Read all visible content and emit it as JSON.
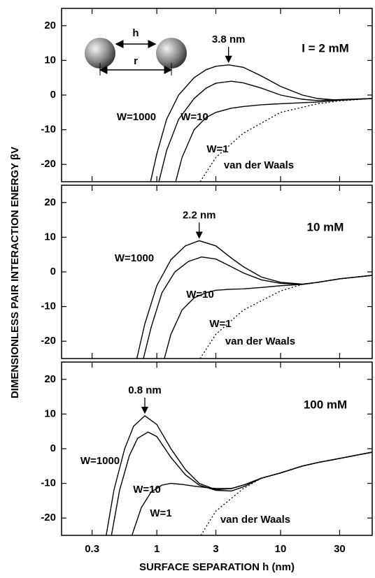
{
  "chart_data": [
    {
      "type": "line",
      "title": "I = 2 mM",
      "xscale": "log",
      "xlim": [
        0.17,
        55
      ],
      "ylim": [
        -25,
        25
      ],
      "xticks": [
        0.3,
        1,
        3,
        10,
        30
      ],
      "yticks": [
        20,
        10,
        0,
        -10,
        -20
      ],
      "color": "#000000",
      "inset_labels": [
        "h",
        "r"
      ],
      "annotation": {
        "text": "3.8 nm",
        "x": 3.8,
        "y": 8.7
      },
      "series": [
        {
          "name": "W=1000",
          "style": "solid",
          "x": [
            0.89,
            1,
            1.2,
            1.5,
            2,
            2.5,
            3,
            3.8,
            5,
            7,
            10,
            15,
            20,
            30,
            40,
            55
          ],
          "values": [
            -25,
            -17,
            -7,
            0,
            5,
            7.3,
            8.3,
            8.7,
            8,
            5.5,
            2.5,
            0,
            -1,
            -1.5,
            -1.2,
            -1
          ]
        },
        {
          "name": "W=10",
          "style": "solid",
          "x": [
            1.04,
            1.2,
            1.5,
            2,
            2.5,
            3,
            4,
            5,
            7,
            10,
            15,
            20,
            30,
            55
          ],
          "values": [
            -25,
            -16,
            -7,
            -1,
            2,
            3.4,
            4,
            3.5,
            2,
            0,
            -1.2,
            -1.6,
            -1.3,
            -1
          ]
        },
        {
          "name": "W=1",
          "style": "solid",
          "x": [
            1.42,
            1.6,
            2,
            2.5,
            3,
            4,
            5,
            7,
            10,
            15,
            20,
            30,
            55
          ],
          "values": [
            -25,
            -18,
            -10,
            -6.5,
            -5,
            -3.8,
            -3.3,
            -2.8,
            -2.5,
            -2.2,
            -2,
            -1.5,
            -1
          ]
        },
        {
          "name": "van der Waals",
          "style": "dotted",
          "x": [
            2.24,
            3,
            5,
            10,
            20,
            30,
            55
          ],
          "values": [
            -25,
            -18,
            -11,
            -5,
            -2.5,
            -1.7,
            -1
          ]
        }
      ]
    },
    {
      "type": "line",
      "title": "10 mM",
      "xscale": "log",
      "xlim": [
        0.17,
        55
      ],
      "ylim": [
        -25,
        25
      ],
      "xticks": [
        0.3,
        1,
        3,
        10,
        30
      ],
      "yticks": [
        20,
        10,
        0,
        -10,
        -20
      ],
      "color": "#000000",
      "annotation": {
        "text": "2.2 nm",
        "x": 2.2,
        "y": 9
      },
      "series": [
        {
          "name": "W=1000",
          "style": "solid",
          "x": [
            0.69,
            0.8,
            1,
            1.3,
            1.7,
            2.2,
            3,
            4,
            5,
            7,
            10,
            15,
            20,
            30,
            55
          ],
          "values": [
            -25,
            -15,
            -4,
            3.5,
            7.5,
            9,
            7.5,
            4,
            1.5,
            -1.5,
            -3,
            -3.5,
            -3,
            -2,
            -1
          ]
        },
        {
          "name": "W=10",
          "style": "solid",
          "x": [
            0.78,
            0.9,
            1.1,
            1.4,
            1.8,
            2.3,
            3,
            4,
            5,
            7,
            10,
            15,
            20,
            30,
            55
          ],
          "values": [
            -25,
            -16,
            -6,
            0,
            3,
            4.3,
            3.7,
            1.5,
            -0.3,
            -2.3,
            -3.3,
            -3.6,
            -3,
            -2,
            -1
          ]
        },
        {
          "name": "W=1",
          "style": "solid",
          "x": [
            1.15,
            1.3,
            1.6,
            2,
            2.5,
            3,
            4,
            5,
            7,
            10,
            15,
            20,
            30,
            55
          ],
          "values": [
            -25,
            -18,
            -11,
            -7.5,
            -6,
            -5.3,
            -5,
            -4.9,
            -4.5,
            -4,
            -3.6,
            -3,
            -2,
            -1
          ]
        },
        {
          "name": "van der Waals",
          "style": "dotted",
          "x": [
            2.24,
            3,
            5,
            10,
            15,
            20,
            30,
            55
          ],
          "values": [
            -25,
            -18,
            -11,
            -5.5,
            -3.6,
            -3,
            -2,
            -1
          ]
        }
      ]
    },
    {
      "type": "line",
      "title": "100 mM",
      "xscale": "log",
      "xlim": [
        0.17,
        55
      ],
      "ylim": [
        -25,
        25
      ],
      "xticks": [
        0.3,
        1,
        3,
        10,
        30
      ],
      "yticks": [
        20,
        10,
        0,
        -10,
        -20
      ],
      "color": "#000000",
      "xlabel": "SURFACE SEPARATION h (nm)",
      "ylabel": "DIMENSIONLESS PAIR INTERACTION ENERGY βV",
      "annotation": {
        "text": "0.8 nm",
        "x": 0.8,
        "y": 9.5
      },
      "series": [
        {
          "name": "W=1000",
          "style": "solid",
          "x": [
            0.39,
            0.45,
            0.55,
            0.65,
            0.8,
            1,
            1.3,
            1.7,
            2.2,
            3,
            4,
            5,
            7,
            10,
            15,
            20,
            30,
            55
          ],
          "values": [
            -25,
            -12,
            0,
            6.5,
            9.5,
            7,
            0,
            -6,
            -10,
            -11.8,
            -11.5,
            -10.5,
            -8.5,
            -7,
            -5,
            -4,
            -2.8,
            -1
          ]
        },
        {
          "name": "W=10",
          "style": "solid",
          "x": [
            0.43,
            0.5,
            0.6,
            0.7,
            0.85,
            1,
            1.3,
            1.7,
            2.2,
            3,
            4,
            5,
            7,
            10,
            15,
            20,
            30,
            55
          ],
          "values": [
            -25,
            -12,
            -2,
            3,
            4.8,
            3.5,
            -2.5,
            -7.5,
            -10.5,
            -12,
            -12.2,
            -11,
            -8.5,
            -7,
            -5,
            -4,
            -2.8,
            -1
          ]
        },
        {
          "name": "W=1",
          "style": "solid",
          "x": [
            0.63,
            0.75,
            0.9,
            1.1,
            1.3,
            1.6,
            2,
            2.5,
            3,
            4,
            5,
            7,
            10,
            15,
            20,
            30,
            55
          ],
          "values": [
            -25,
            -17,
            -12.5,
            -10.5,
            -10,
            -10.3,
            -10.8,
            -11.2,
            -11.5,
            -11.5,
            -10.5,
            -8.5,
            -7,
            -5,
            -4,
            -2.8,
            -1
          ]
        },
        {
          "name": "van der Waals",
          "style": "dotted",
          "x": [
            2.27,
            3,
            5,
            7,
            10,
            15,
            20,
            30,
            55
          ],
          "values": [
            -25,
            -18,
            -11.5,
            -8.5,
            -7,
            -5,
            -4,
            -2.8,
            -1
          ]
        }
      ]
    }
  ]
}
